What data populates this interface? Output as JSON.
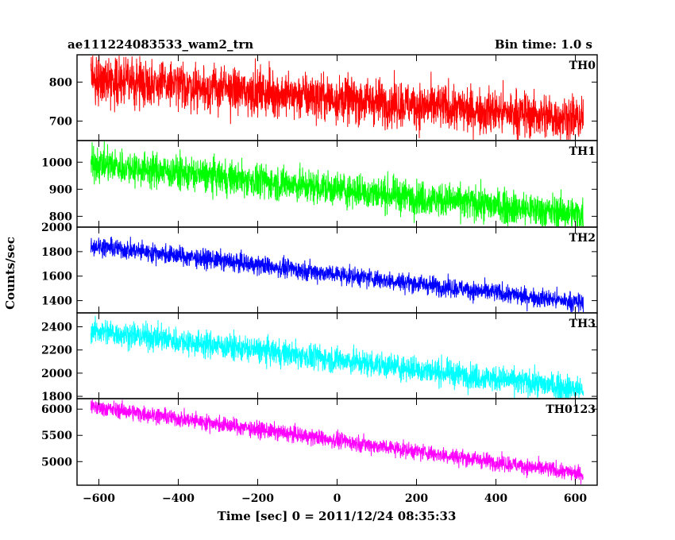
{
  "chart_data": {
    "type": "line",
    "title": "ae111224083533_wam2_trn",
    "subtitle": "Bin time: 1.0 s",
    "xlabel": "Time [sec] 0 = 2011/12/24 08:35:33",
    "ylabel": "Counts/sec",
    "xlim": [
      -655,
      655
    ],
    "x_range": [
      -620,
      620
    ],
    "bin_time_s": 1.0,
    "xticks": [
      -600,
      -400,
      -200,
      0,
      200,
      400,
      600
    ],
    "x_tick_labels": [
      "−600",
      "−400",
      "−200",
      "0",
      "200",
      "400",
      "600"
    ],
    "grid": false,
    "series": [
      {
        "name": "TH0",
        "color": "#ff0000",
        "ylim": [
          650,
          870
        ],
        "yticks": [
          700,
          800
        ],
        "y_tick_labels": [
          "700",
          "800"
        ],
        "trend_start": 810,
        "trend_end": 705,
        "noise_amplitude": 42
      },
      {
        "name": "TH1",
        "color": "#00ff00",
        "ylim": [
          760,
          1080
        ],
        "yticks": [
          800,
          900,
          1000
        ],
        "y_tick_labels": [
          "800",
          "900",
          "1000"
        ],
        "trend_start": 995,
        "trend_end": 805,
        "noise_amplitude": 45
      },
      {
        "name": "TH2",
        "color": "#0000ff",
        "ylim": [
          1300,
          2000
        ],
        "yticks": [
          1400,
          1600,
          1800,
          2000
        ],
        "y_tick_labels": [
          "1400",
          "1600",
          "1800",
          "2000"
        ],
        "trend_start": 1850,
        "trend_end": 1380,
        "noise_amplitude": 55
      },
      {
        "name": "TH3",
        "color": "#00ffff",
        "ylim": [
          1780,
          2520
        ],
        "yticks": [
          1800,
          2000,
          2200,
          2400
        ],
        "y_tick_labels": [
          "1800",
          "2000",
          "2200",
          "2400"
        ],
        "trend_start": 2370,
        "trend_end": 1860,
        "noise_amplitude": 80
      },
      {
        "name": "TH0123",
        "color": "#ff00ff",
        "ylim": [
          4550,
          6200
        ],
        "yticks": [
          5000,
          5500,
          6000
        ],
        "y_tick_labels": [
          "5000",
          "5500",
          "6000"
        ],
        "trend_start": 6050,
        "trend_end": 4760,
        "noise_amplitude": 110
      }
    ]
  }
}
